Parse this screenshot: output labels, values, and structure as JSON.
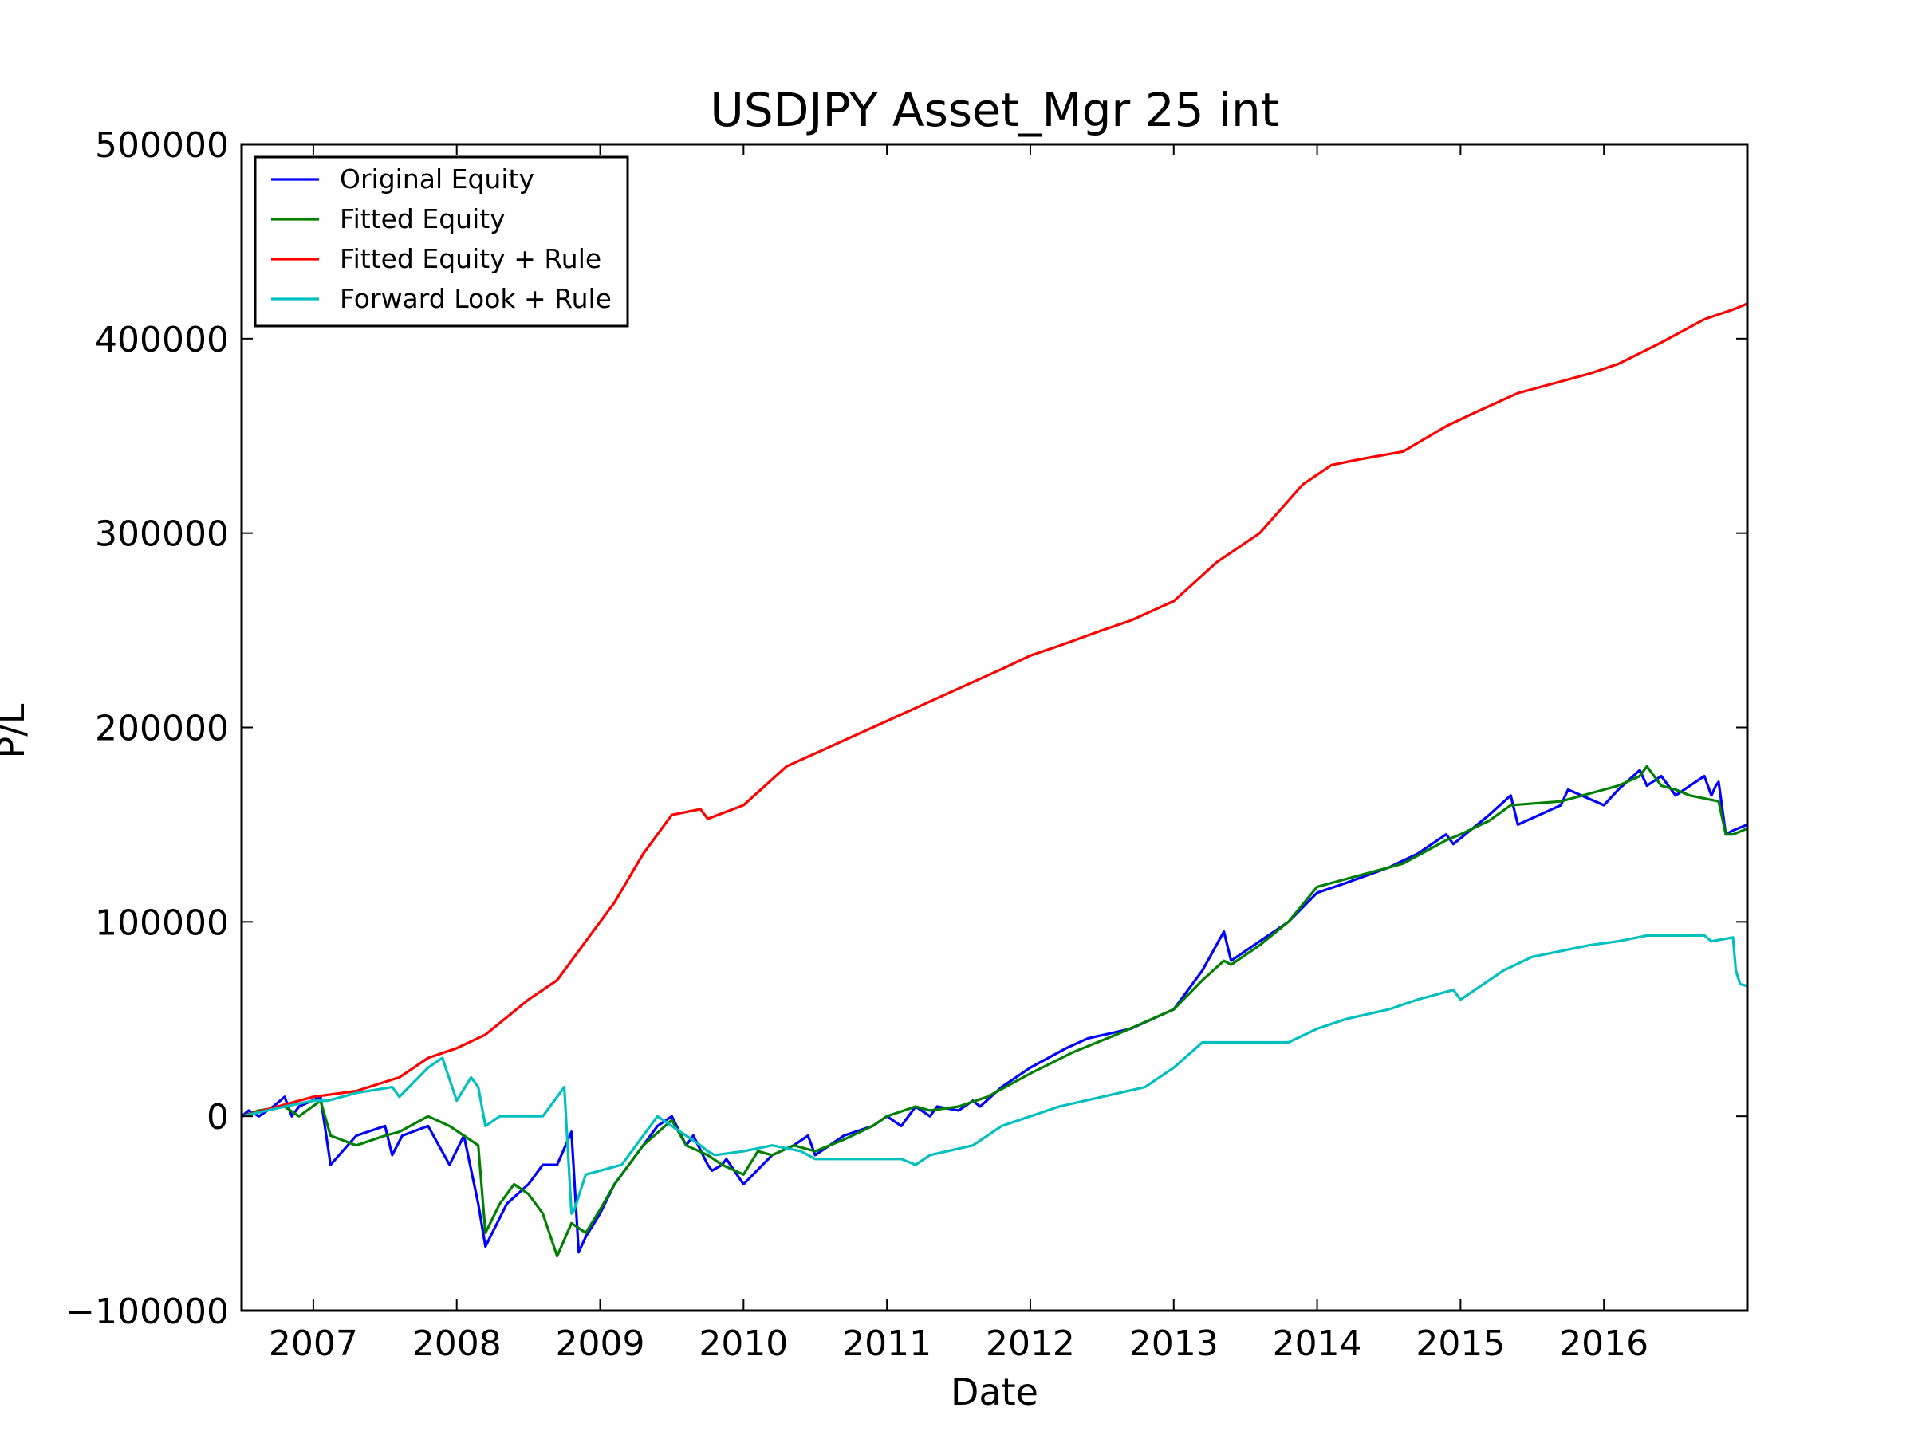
{
  "chart_data": {
    "type": "line",
    "title": "USDJPY Asset_Mgr 25 int",
    "xlabel": "Date",
    "ylabel": "P/L",
    "xlim": [
      2006.5,
      2017.0
    ],
    "ylim": [
      -100000,
      500000
    ],
    "x_ticks": [
      2007,
      2008,
      2009,
      2010,
      2011,
      2012,
      2013,
      2014,
      2015,
      2016
    ],
    "x_tick_labels": [
      "2007",
      "2008",
      "2009",
      "2010",
      "2011",
      "2012",
      "2013",
      "2014",
      "2015",
      "2016"
    ],
    "y_ticks": [
      -100000,
      0,
      100000,
      200000,
      300000,
      400000,
      500000
    ],
    "y_tick_labels": [
      "−100000",
      "0",
      "100000",
      "200000",
      "300000",
      "400000",
      "500000"
    ],
    "grid": false,
    "legend_position": "top-left",
    "series": [
      {
        "name": "Original Equity",
        "color": "#0000ff",
        "x": [
          2006.5,
          2006.55,
          2006.62,
          2006.72,
          2006.8,
          2006.85,
          2006.9,
          2007.05,
          2007.12,
          2007.3,
          2007.5,
          2007.55,
          2007.62,
          2007.8,
          2007.95,
          2008.05,
          2008.15,
          2008.2,
          2008.35,
          2008.5,
          2008.6,
          2008.7,
          2008.8,
          2008.85,
          2008.9,
          2009.0,
          2009.1,
          2009.25,
          2009.4,
          2009.5,
          2009.6,
          2009.65,
          2009.75,
          2009.78,
          2009.85,
          2009.88,
          2010.0,
          2010.2,
          2010.35,
          2010.45,
          2010.5,
          2010.7,
          2010.9,
          2011.0,
          2011.1,
          2011.2,
          2011.3,
          2011.35,
          2011.5,
          2011.6,
          2011.65,
          2011.8,
          2012.0,
          2012.25,
          2012.4,
          2012.7,
          2013.0,
          2013.2,
          2013.35,
          2013.4,
          2013.6,
          2013.8,
          2014.0,
          2014.2,
          2014.5,
          2014.7,
          2014.9,
          2014.95,
          2015.2,
          2015.35,
          2015.4,
          2015.7,
          2015.75,
          2016.0,
          2016.1,
          2016.25,
          2016.3,
          2016.4,
          2016.5,
          2016.6,
          2016.7,
          2016.75,
          2016.78,
          2016.8,
          2016.85,
          2016.9,
          2017.0
        ],
        "y": [
          0,
          3000,
          0,
          5000,
          10000,
          0,
          5000,
          10000,
          -25000,
          -10000,
          -5000,
          -20000,
          -10000,
          -5000,
          -25000,
          -10000,
          -45000,
          -67000,
          -45000,
          -35000,
          -25000,
          -25000,
          -8000,
          -70000,
          -62000,
          -50000,
          -35000,
          -20000,
          -5000,
          0,
          -15000,
          -10000,
          -25000,
          -28000,
          -25000,
          -22000,
          -35000,
          -20000,
          -15000,
          -10000,
          -20000,
          -10000,
          -5000,
          0,
          -5000,
          5000,
          0,
          5000,
          3000,
          8000,
          5000,
          15000,
          25000,
          35000,
          40000,
          45000,
          55000,
          75000,
          95000,
          80000,
          90000,
          100000,
          115000,
          120000,
          128000,
          135000,
          145000,
          140000,
          155000,
          165000,
          150000,
          160000,
          168000,
          160000,
          168000,
          178000,
          170000,
          175000,
          165000,
          170000,
          175000,
          165000,
          170000,
          172000,
          145000,
          147000,
          150000
        ]
      },
      {
        "name": "Fitted Equity",
        "color": "#008000",
        "x": [
          2006.5,
          2006.62,
          2006.8,
          2006.9,
          2007.05,
          2007.12,
          2007.3,
          2007.5,
          2007.6,
          2007.8,
          2007.95,
          2008.05,
          2008.15,
          2008.2,
          2008.3,
          2008.4,
          2008.5,
          2008.6,
          2008.7,
          2008.8,
          2008.9,
          2009.0,
          2009.1,
          2009.3,
          2009.5,
          2009.6,
          2009.75,
          2009.85,
          2010.0,
          2010.1,
          2010.2,
          2010.35,
          2010.5,
          2010.7,
          2010.9,
          2011.0,
          2011.2,
          2011.3,
          2011.5,
          2011.7,
          2012.0,
          2012.3,
          2012.6,
          2013.0,
          2013.2,
          2013.35,
          2013.4,
          2013.6,
          2013.8,
          2014.0,
          2014.3,
          2014.6,
          2014.9,
          2015.0,
          2015.2,
          2015.35,
          2015.7,
          2016.0,
          2016.1,
          2016.25,
          2016.3,
          2016.4,
          2016.5,
          2016.6,
          2016.8,
          2016.85,
          2016.9,
          2017.0
        ],
        "y": [
          0,
          3000,
          5000,
          0,
          8000,
          -10000,
          -15000,
          -10000,
          -8000,
          0,
          -5000,
          -10000,
          -15000,
          -60000,
          -45000,
          -35000,
          -40000,
          -50000,
          -72000,
          -55000,
          -60000,
          -48000,
          -35000,
          -15000,
          -2000,
          -15000,
          -20000,
          -25000,
          -30000,
          -18000,
          -20000,
          -15000,
          -18000,
          -12000,
          -5000,
          0,
          5000,
          3000,
          5000,
          10000,
          22000,
          33000,
          42000,
          55000,
          70000,
          80000,
          78000,
          88000,
          100000,
          118000,
          124000,
          130000,
          142000,
          145000,
          152000,
          160000,
          162000,
          168000,
          170000,
          175000,
          180000,
          170000,
          168000,
          165000,
          162000,
          145000,
          145000,
          148000
        ]
      },
      {
        "name": "Fitted Equity + Rule",
        "color": "#ff0000",
        "x": [
          2006.5,
          2007.0,
          2007.3,
          2007.6,
          2007.8,
          2008.0,
          2008.2,
          2008.5,
          2008.7,
          2008.9,
          2009.1,
          2009.3,
          2009.5,
          2009.7,
          2009.75,
          2010.0,
          2010.3,
          2010.6,
          2010.9,
          2011.2,
          2011.5,
          2011.8,
          2012.0,
          2012.2,
          2012.5,
          2012.7,
          2013.0,
          2013.3,
          2013.6,
          2013.9,
          2014.1,
          2014.3,
          2014.6,
          2014.9,
          2015.1,
          2015.4,
          2015.7,
          2015.9,
          2016.1,
          2016.4,
          2016.7,
          2016.9,
          2017.0
        ],
        "y": [
          0,
          10000,
          13000,
          20000,
          30000,
          35000,
          42000,
          60000,
          70000,
          90000,
          110000,
          135000,
          155000,
          158000,
          153000,
          160000,
          180000,
          190000,
          200000,
          210000,
          220000,
          230000,
          237000,
          242000,
          250000,
          255000,
          265000,
          285000,
          300000,
          325000,
          335000,
          338000,
          342000,
          355000,
          362000,
          372000,
          378000,
          382000,
          387000,
          398000,
          410000,
          415000,
          418000
        ]
      },
      {
        "name": "Forward Look + Rule",
        "color": "#00bfbf",
        "x": [
          2006.5,
          2006.8,
          2007.0,
          2007.1,
          2007.3,
          2007.55,
          2007.6,
          2007.8,
          2007.9,
          2008.0,
          2008.1,
          2008.15,
          2008.2,
          2008.3,
          2008.6,
          2008.7,
          2008.75,
          2008.8,
          2008.82,
          2008.9,
          2009.0,
          2009.15,
          2009.2,
          2009.4,
          2009.5,
          2009.6,
          2009.7,
          2009.75,
          2009.8,
          2010.0,
          2010.2,
          2010.4,
          2010.5,
          2010.7,
          2011.1,
          2011.2,
          2011.3,
          2011.6,
          2011.8,
          2012.0,
          2012.2,
          2012.5,
          2012.8,
          2013.0,
          2013.2,
          2013.8,
          2014.0,
          2014.2,
          2014.5,
          2014.7,
          2014.95,
          2015.0,
          2015.3,
          2015.5,
          2015.7,
          2015.9,
          2016.1,
          2016.3,
          2016.7,
          2016.75,
          2016.9,
          2016.92,
          2016.95,
          2017.0
        ],
        "y": [
          0,
          5000,
          8000,
          8000,
          12000,
          15000,
          10000,
          25000,
          30000,
          8000,
          20000,
          15000,
          -5000,
          0,
          0,
          10000,
          15000,
          -50000,
          -48000,
          -30000,
          -28000,
          -25000,
          -20000,
          0,
          -5000,
          -10000,
          -15000,
          -18000,
          -20000,
          -18000,
          -15000,
          -18000,
          -22000,
          -22000,
          -22000,
          -25000,
          -20000,
          -15000,
          -5000,
          0,
          5000,
          10000,
          15000,
          25000,
          38000,
          38000,
          45000,
          50000,
          55000,
          60000,
          65000,
          60000,
          75000,
          82000,
          85000,
          88000,
          90000,
          93000,
          93000,
          90000,
          92000,
          75000,
          68000,
          67000
        ]
      }
    ]
  }
}
